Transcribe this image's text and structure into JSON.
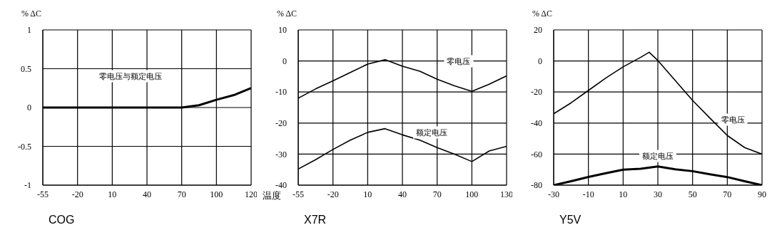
{
  "chart_data": [
    {
      "type": "line",
      "title": "COG",
      "ylabel": "% ΔC",
      "categories": [
        "-55",
        null,
        "-20",
        null,
        "10",
        null,
        "40",
        null,
        "70",
        null,
        "100",
        null,
        "120"
      ],
      "series": [
        {
          "name": "零电压与额定电压",
          "color": "#000000",
          "values": [
            0,
            0,
            0,
            0,
            0,
            0,
            0,
            0,
            0,
            0.03,
            0.1,
            0.16,
            0.25
          ]
        }
      ],
      "ylim": [
        -1,
        1
      ],
      "yticks": [
        -1,
        {
          "value": -0.5,
          "label": "-0.5"
        },
        0,
        {
          "value": 0.5,
          "label": "0.5"
        },
        1
      ],
      "grid": true
    },
    {
      "type": "line",
      "title": "X7R",
      "ylabel": "% ΔC",
      "xlabel": "温度",
      "categories": [
        "-55",
        null,
        "-20",
        null,
        "10",
        null,
        "40",
        null,
        "70",
        null,
        "100",
        null,
        "130"
      ],
      "series": [
        {
          "name": "零电压",
          "color": "#000000",
          "values": [
            -12,
            -9,
            -6.4,
            -3.7,
            -1,
            0.4,
            -1.7,
            -3.3,
            -5.9,
            -8,
            -9.8,
            -7.5,
            -4.8
          ]
        },
        {
          "name": "额定电压",
          "color": "#000000",
          "values": [
            -34.8,
            -31.8,
            -28.5,
            -25.5,
            -23,
            -21.8,
            -23.8,
            -25.5,
            -27.9,
            -30,
            -32.4,
            -29,
            -27.5
          ]
        }
      ],
      "ylim": [
        -40,
        10
      ],
      "yticks": [
        -40,
        -30,
        -20,
        -10,
        0,
        10
      ],
      "grid": true
    },
    {
      "type": "line",
      "title": "Y5V",
      "ylabel": "% ΔC",
      "x": [
        -30,
        -20,
        -10,
        0,
        10,
        20,
        25,
        30,
        40,
        50,
        60,
        70,
        80,
        90
      ],
      "series": [
        {
          "name": "零电压",
          "color": "#000000",
          "values": [
            -34,
            -27,
            -19,
            -11,
            -3.8,
            2.3,
            5.6,
            0.3,
            -12.6,
            -25.4,
            -36.8,
            -48,
            -55.8,
            -60
          ]
        },
        {
          "name": "额定电压",
          "color": "#000000",
          "x": [
            -30,
            -20,
            -10,
            0,
            10,
            20,
            30,
            40,
            50,
            60,
            70,
            80,
            90
          ],
          "values": [
            -80,
            -77.5,
            -74.7,
            -72.3,
            -70,
            -69.5,
            -68,
            -69.8,
            -71,
            -73,
            -74.8,
            -77.5,
            -80
          ]
        }
      ],
      "xlim": [
        -30,
        90
      ],
      "xticks": [
        -30,
        -10,
        10,
        30,
        50,
        70,
        90
      ],
      "ylim": [
        -80,
        20
      ],
      "yticks": [
        -80,
        -60,
        -40,
        -20,
        0,
        20
      ],
      "grid": true
    }
  ]
}
